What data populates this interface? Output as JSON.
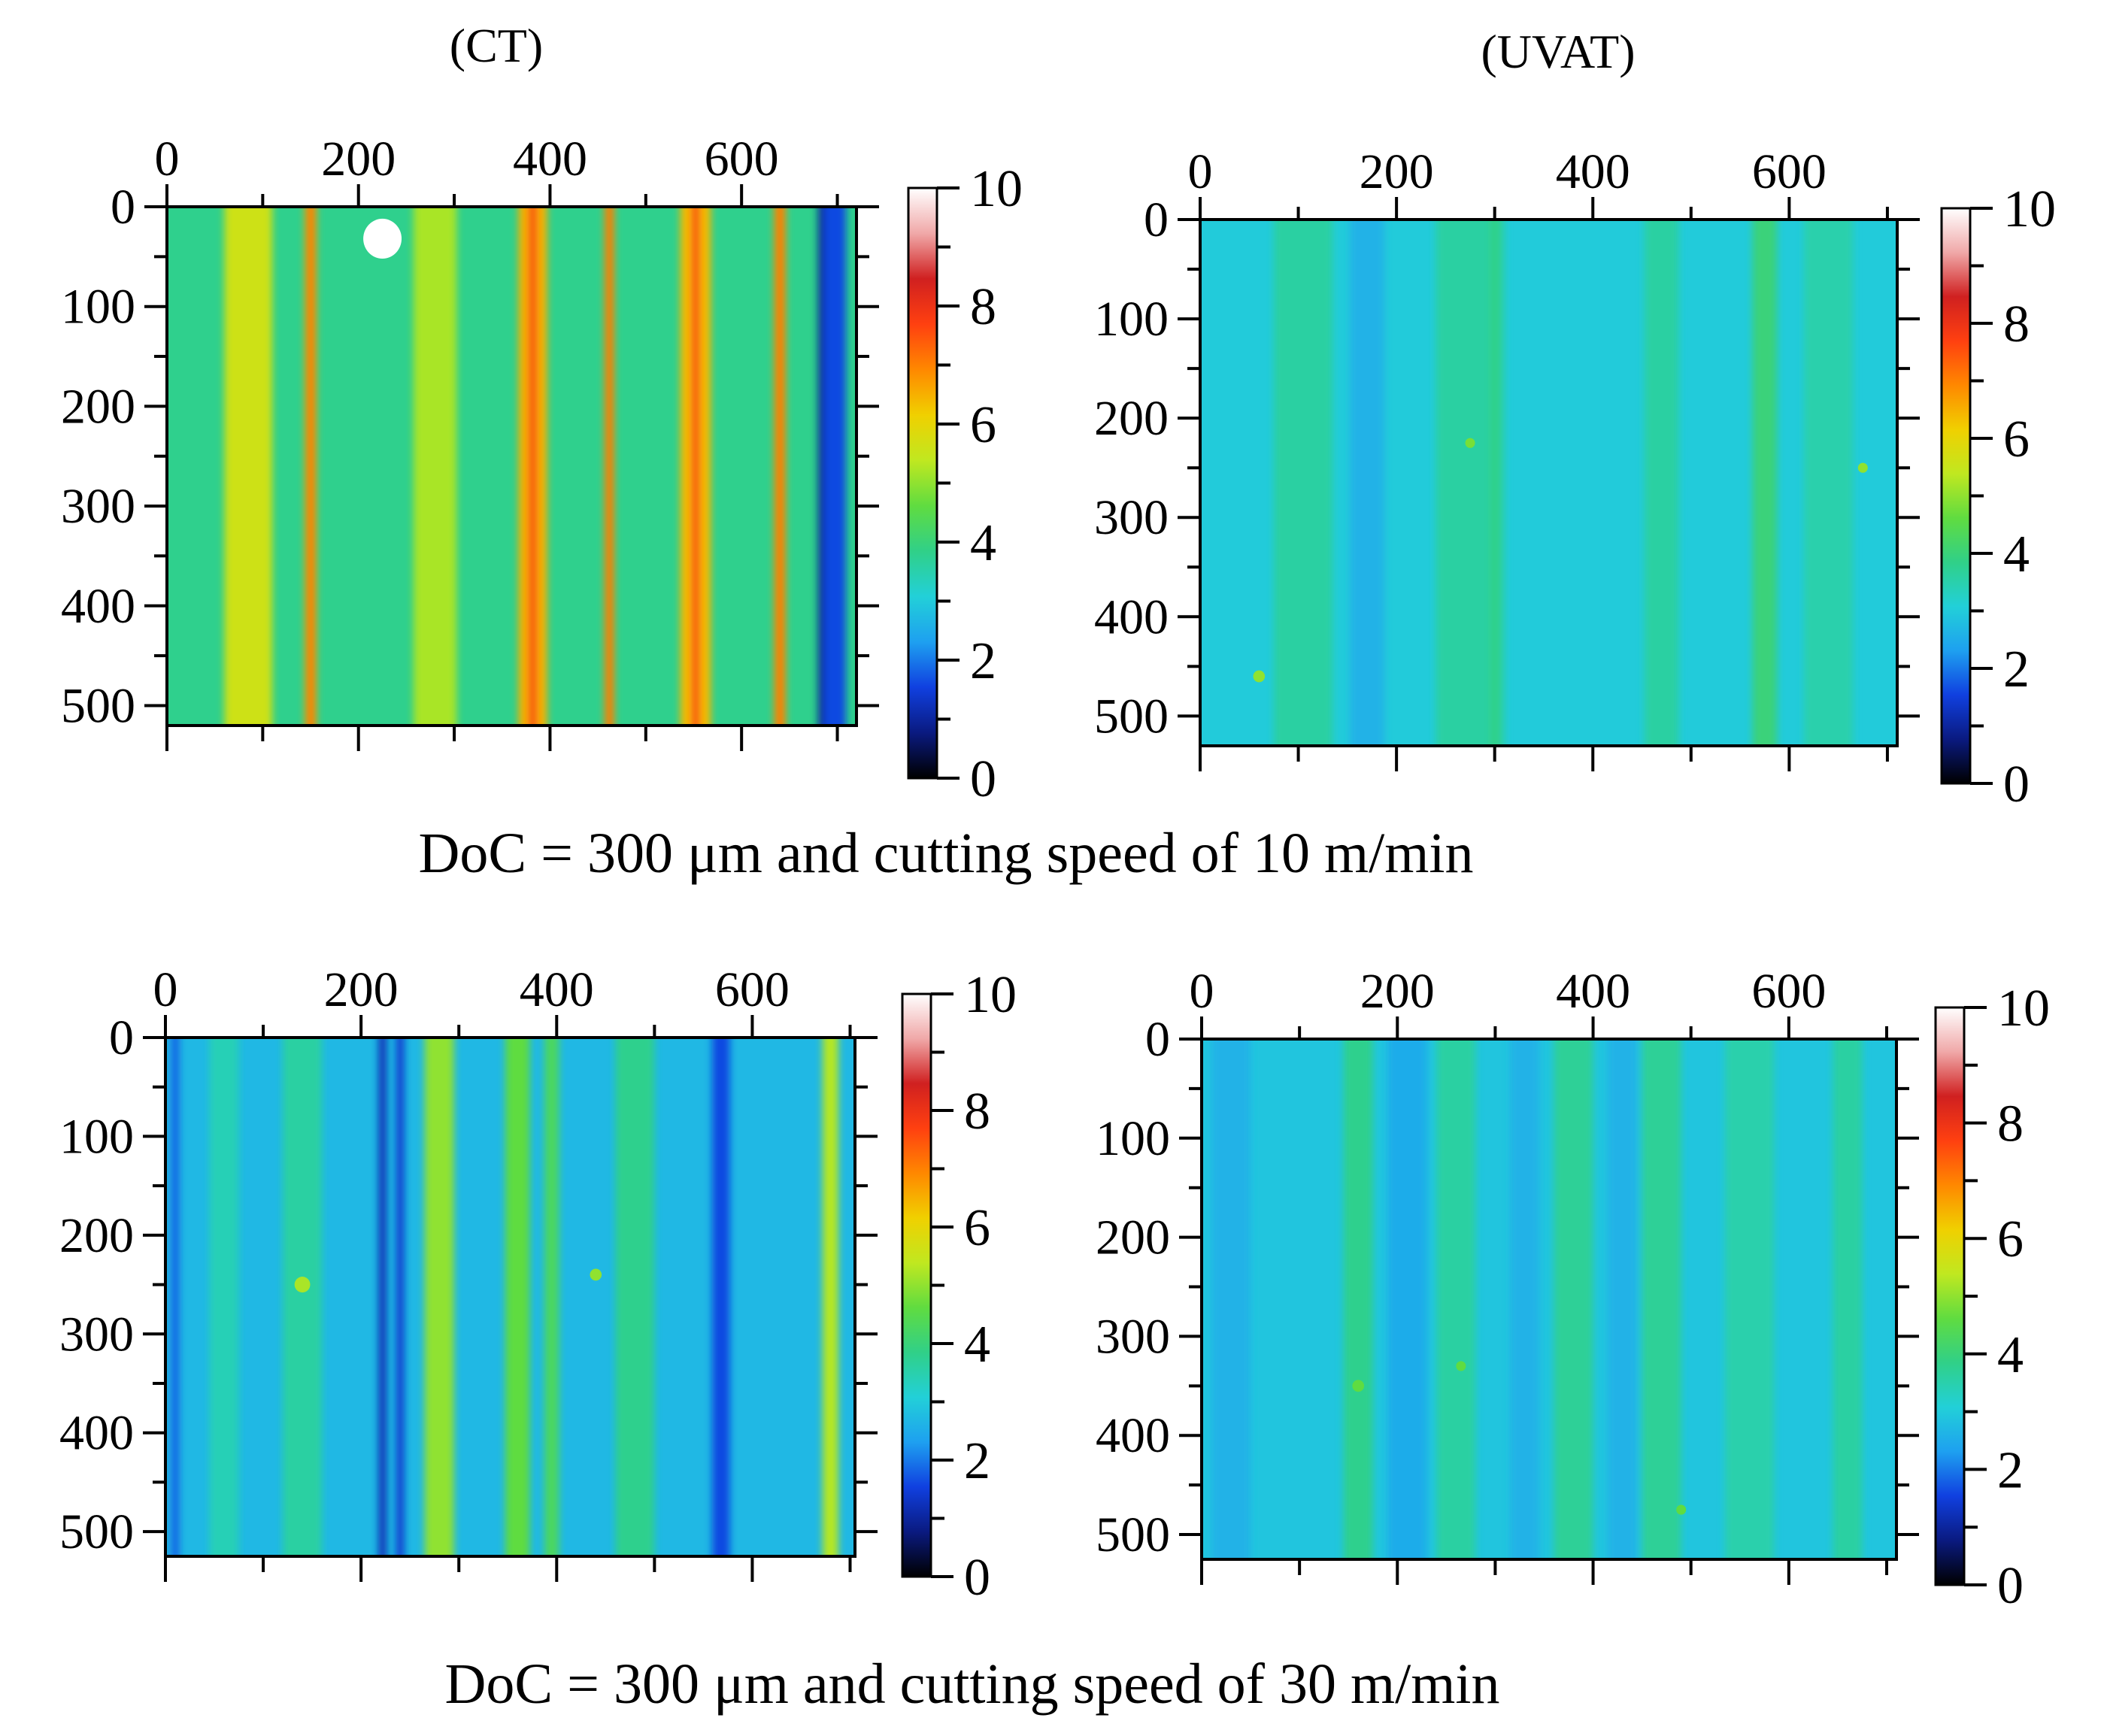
{
  "column_titles": [
    "(CT)",
    "(UVAT)"
  ],
  "row_captions": [
    "DoC = 300 μm and cutting speed of 10 m/min",
    "DoC = 300 μm and cutting speed of 30 m/min"
  ],
  "colormap": [
    "#000000",
    "#0a1a80",
    "#1040e0",
    "#1ea0f0",
    "#22d0d8",
    "#30d088",
    "#60dc40",
    "#c0e820",
    "#f0d000",
    "#ff8800",
    "#ff4010",
    "#d02020",
    "#f0a8a8",
    "#ffffff"
  ],
  "chart_data": [
    {
      "type": "heatmap",
      "panel": "CT, 10 m/min",
      "x_ticks": [
        0,
        200,
        400,
        600
      ],
      "y_ticks": [
        0,
        100,
        200,
        300,
        400,
        500
      ],
      "xlim": [
        0,
        720
      ],
      "ylim": [
        0,
        520
      ],
      "x_axis_position": "top",
      "y_axis_inverted": true,
      "colorbar": {
        "ticks": [
          0,
          2,
          4,
          6,
          8,
          10
        ],
        "range": [
          0,
          10
        ]
      },
      "background_value": 3.8,
      "stripes": [
        {
          "x": 85,
          "width": 50,
          "value": 5.6
        },
        {
          "x": 150,
          "width": 12,
          "value": 6.6
        },
        {
          "x": 150,
          "width": 4,
          "value": 7.6
        },
        {
          "x": 280,
          "width": 45,
          "value": 5.2
        },
        {
          "x": 382,
          "width": 30,
          "value": 6.5
        },
        {
          "x": 382,
          "width": 8,
          "value": 7.8
        },
        {
          "x": 462,
          "width": 10,
          "value": 6.8
        },
        {
          "x": 462,
          "width": 3,
          "value": 7.6
        },
        {
          "x": 552,
          "width": 32,
          "value": 6.4
        },
        {
          "x": 552,
          "width": 8,
          "value": 7.8
        },
        {
          "x": 640,
          "width": 12,
          "value": 6.8
        },
        {
          "x": 640,
          "width": 3,
          "value": 7.6
        },
        {
          "x": 695,
          "width": 28,
          "value": 1.6
        },
        {
          "x": 683,
          "width": 6,
          "value": 0.9
        }
      ],
      "spots": [
        {
          "x": 225,
          "y": 32,
          "r": 20,
          "value": 10
        }
      ]
    },
    {
      "type": "heatmap",
      "panel": "UVAT, 10 m/min",
      "x_ticks": [
        0,
        200,
        400,
        600
      ],
      "y_ticks": [
        0,
        100,
        200,
        300,
        400,
        500
      ],
      "xlim": [
        0,
        710
      ],
      "ylim": [
        0,
        530
      ],
      "x_axis_position": "top",
      "y_axis_inverted": true,
      "colorbar": {
        "ticks": [
          0,
          2,
          4,
          6,
          8,
          10
        ],
        "range": [
          0,
          10
        ]
      },
      "background_value": 3.0,
      "stripes": [
        {
          "x": 105,
          "width": 60,
          "value": 3.6
        },
        {
          "x": 170,
          "width": 35,
          "value": 2.6
        },
        {
          "x": 275,
          "width": 70,
          "value": 3.6
        },
        {
          "x": 470,
          "width": 35,
          "value": 3.6
        },
        {
          "x": 575,
          "width": 25,
          "value": 4.0
        },
        {
          "x": 640,
          "width": 50,
          "value": 3.5
        },
        {
          "x": 300,
          "width": 8,
          "value": 3.9
        }
      ],
      "spots": [
        {
          "x": 60,
          "y": 460,
          "r": 6,
          "value": 5.0
        },
        {
          "x": 275,
          "y": 225,
          "r": 5,
          "value": 4.8
        },
        {
          "x": 675,
          "y": 250,
          "r": 5,
          "value": 5.0
        }
      ]
    },
    {
      "type": "heatmap",
      "panel": "CT, 30 m/min",
      "x_ticks": [
        0,
        200,
        400,
        600
      ],
      "y_ticks": [
        0,
        100,
        200,
        300,
        400,
        500
      ],
      "xlim": [
        0,
        705
      ],
      "ylim": [
        0,
        525
      ],
      "x_axis_position": "top",
      "y_axis_inverted": true,
      "colorbar": {
        "ticks": [
          0,
          2,
          4,
          6,
          8,
          10
        ],
        "range": [
          0,
          10
        ]
      },
      "background_value": 2.7,
      "stripes": [
        {
          "x": 60,
          "width": 30,
          "value": 3.4
        },
        {
          "x": 140,
          "width": 40,
          "value": 3.6
        },
        {
          "x": 222,
          "width": 8,
          "value": 1.2
        },
        {
          "x": 240,
          "width": 8,
          "value": 1.4
        },
        {
          "x": 280,
          "width": 30,
          "value": 5.0
        },
        {
          "x": 360,
          "width": 25,
          "value": 4.6
        },
        {
          "x": 395,
          "width": 15,
          "value": 4.3
        },
        {
          "x": 480,
          "width": 40,
          "value": 3.8
        },
        {
          "x": 568,
          "width": 18,
          "value": 1.6
        },
        {
          "x": 680,
          "width": 16,
          "value": 5.3
        },
        {
          "x": 10,
          "width": 8,
          "value": 1.8
        }
      ],
      "spots": [
        {
          "x": 140,
          "y": 250,
          "r": 8,
          "value": 5.2
        },
        {
          "x": 440,
          "y": 240,
          "r": 6,
          "value": 5.0
        }
      ]
    },
    {
      "type": "heatmap",
      "panel": "UVAT, 30 m/min",
      "x_ticks": [
        0,
        200,
        400,
        600
      ],
      "y_ticks": [
        0,
        100,
        200,
        300,
        400,
        500
      ],
      "xlim": [
        0,
        710
      ],
      "ylim": [
        0,
        525
      ],
      "x_axis_position": "top",
      "y_axis_inverted": true,
      "colorbar": {
        "ticks": [
          0,
          2,
          4,
          6,
          8,
          10
        ],
        "range": [
          0,
          10
        ]
      },
      "background_value": 2.9,
      "stripes": [
        {
          "x": 30,
          "width": 40,
          "value": 2.6
        },
        {
          "x": 160,
          "width": 30,
          "value": 3.8
        },
        {
          "x": 210,
          "width": 40,
          "value": 2.5
        },
        {
          "x": 260,
          "width": 40,
          "value": 3.6
        },
        {
          "x": 330,
          "width": 30,
          "value": 2.6
        },
        {
          "x": 380,
          "width": 40,
          "value": 3.7
        },
        {
          "x": 430,
          "width": 30,
          "value": 2.6
        },
        {
          "x": 470,
          "width": 40,
          "value": 3.7
        },
        {
          "x": 560,
          "width": 50,
          "value": 3.5
        },
        {
          "x": 660,
          "width": 30,
          "value": 3.6
        }
      ],
      "spots": [
        {
          "x": 160,
          "y": 350,
          "r": 6,
          "value": 4.6
        },
        {
          "x": 265,
          "y": 330,
          "r": 5,
          "value": 4.6
        },
        {
          "x": 490,
          "y": 475,
          "r": 5,
          "value": 4.6
        }
      ]
    }
  ]
}
